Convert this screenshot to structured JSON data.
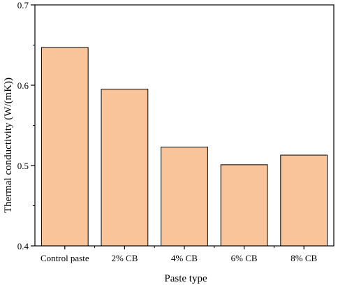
{
  "chart_data": {
    "type": "bar",
    "title": "",
    "xlabel": "Paste type",
    "ylabel": "Thermal conductivity (W/(mK))",
    "categories": [
      "Control paste",
      "2% CB",
      "4% CB",
      "6% CB",
      "8% CB"
    ],
    "values": [
      0.647,
      0.595,
      0.523,
      0.501,
      0.513
    ],
    "ylim": [
      0.4,
      0.7
    ],
    "yticks": [
      0.4,
      0.5,
      0.6,
      0.7
    ],
    "ytick_labels": [
      "0.4",
      "0.5",
      "0.6",
      "0.7"
    ],
    "grid": false,
    "legend": "none",
    "colors": {
      "bar_fill": "#f9c49a",
      "bar_stroke": "#000000",
      "axis": "#000000"
    }
  }
}
